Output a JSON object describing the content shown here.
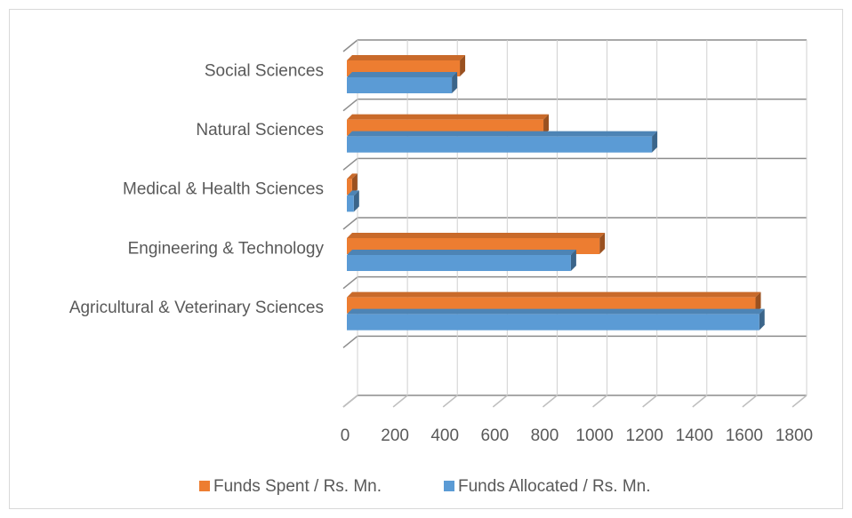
{
  "chart_data": {
    "type": "bar3d_horizontal",
    "categories": [
      "Social Sciences",
      "Natural Sciences",
      "Medical & Health Sciences",
      "Engineering & Technology",
      "Agricultural & Veterinary Sciences",
      null
    ],
    "series": [
      {
        "name": "Funds Spent / Rs. Mn.",
        "color": "#ed7d31",
        "values": [
          460,
          795,
          28,
          1020,
          1645,
          null
        ]
      },
      {
        "name": "Funds Allocated / Rs. Mn.",
        "color": "#5b9bd5",
        "values": [
          428,
          1230,
          35,
          905,
          1660,
          null
        ]
      }
    ],
    "xlim": [
      0,
      1800
    ],
    "xticks": [
      0,
      200,
      400,
      600,
      800,
      1000,
      1200,
      1400,
      1600,
      1800
    ],
    "grid": true,
    "legend": "bottom"
  }
}
